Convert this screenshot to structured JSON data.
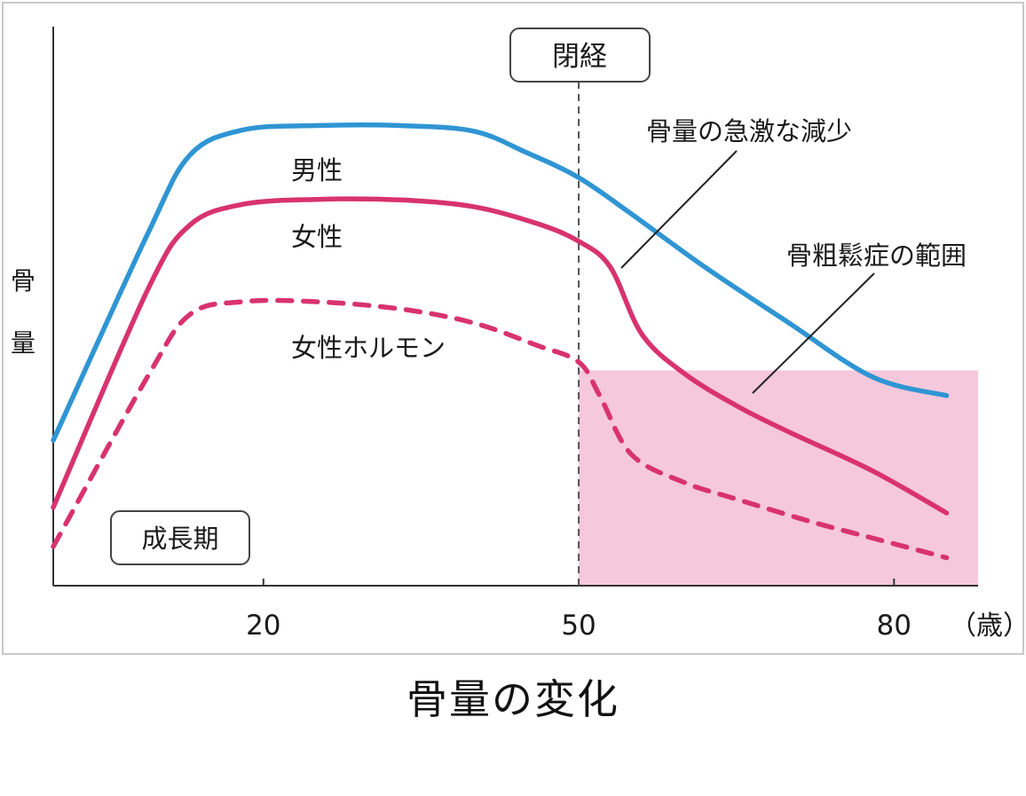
{
  "caption": "骨量の変化",
  "colors": {
    "male": "#2f95d3",
    "female": "#d8336e",
    "hormone": "#d8336e",
    "osteoporosis_fill": "#f6c8dc",
    "axis": "#333333"
  },
  "chart_data": {
    "type": "line",
    "ylabel": "骨量",
    "ylim": [
      0,
      100
    ],
    "x_unit": "（歳）",
    "xlim": [
      0,
      88
    ],
    "x_ticks": [
      {
        "value": 20,
        "label": "20"
      },
      {
        "value": 50,
        "label": "50"
      },
      {
        "value": 80,
        "label": "80"
      }
    ],
    "series": [
      {
        "name": "男性",
        "key": "male",
        "style": "solid",
        "points": [
          [
            0,
            26
          ],
          [
            9,
            63
          ],
          [
            13,
            77
          ],
          [
            18,
            81.5
          ],
          [
            25,
            82.3
          ],
          [
            33,
            82.3
          ],
          [
            40,
            81.3
          ],
          [
            45,
            77.5
          ],
          [
            50,
            73
          ],
          [
            55,
            66.5
          ],
          [
            62,
            57
          ],
          [
            70,
            47
          ],
          [
            78,
            37.3
          ],
          [
            85,
            34
          ]
        ]
      },
      {
        "name": "女性",
        "key": "female",
        "style": "solid",
        "points": [
          [
            0,
            14
          ],
          [
            9,
            53
          ],
          [
            13,
            64.5
          ],
          [
            18,
            68.2
          ],
          [
            25,
            69.1
          ],
          [
            33,
            69
          ],
          [
            40,
            67.8
          ],
          [
            46,
            64.8
          ],
          [
            50,
            61.6
          ],
          [
            53,
            57
          ],
          [
            56,
            45
          ],
          [
            60,
            38
          ],
          [
            65,
            32.2
          ],
          [
            70,
            27.5
          ],
          [
            78,
            20.5
          ],
          [
            85,
            13
          ]
        ]
      },
      {
        "name": "女性ホルモン",
        "key": "hormone",
        "style": "dashed",
        "points": [
          [
            0,
            7
          ],
          [
            9,
            37.5
          ],
          [
            13,
            48.5
          ],
          [
            18,
            50.8
          ],
          [
            25,
            50.8
          ],
          [
            33,
            49.5
          ],
          [
            40,
            47
          ],
          [
            46,
            43
          ],
          [
            50,
            40
          ],
          [
            52,
            34
          ],
          [
            55,
            23.5
          ],
          [
            60,
            18.5
          ],
          [
            65,
            15.5
          ],
          [
            72,
            11.5
          ],
          [
            78,
            8.5
          ],
          [
            85,
            5
          ]
        ]
      }
    ],
    "annotations": {
      "menopause": {
        "label": "閉経",
        "x": 50
      },
      "growth": {
        "label": "成長期"
      },
      "rapid_loss": {
        "label": "骨量の急激な減少"
      },
      "osteoporosis": {
        "label": "骨粗鬆症の範囲",
        "x_from": 50,
        "x_to": 88,
        "y_max": 38.5
      }
    }
  }
}
